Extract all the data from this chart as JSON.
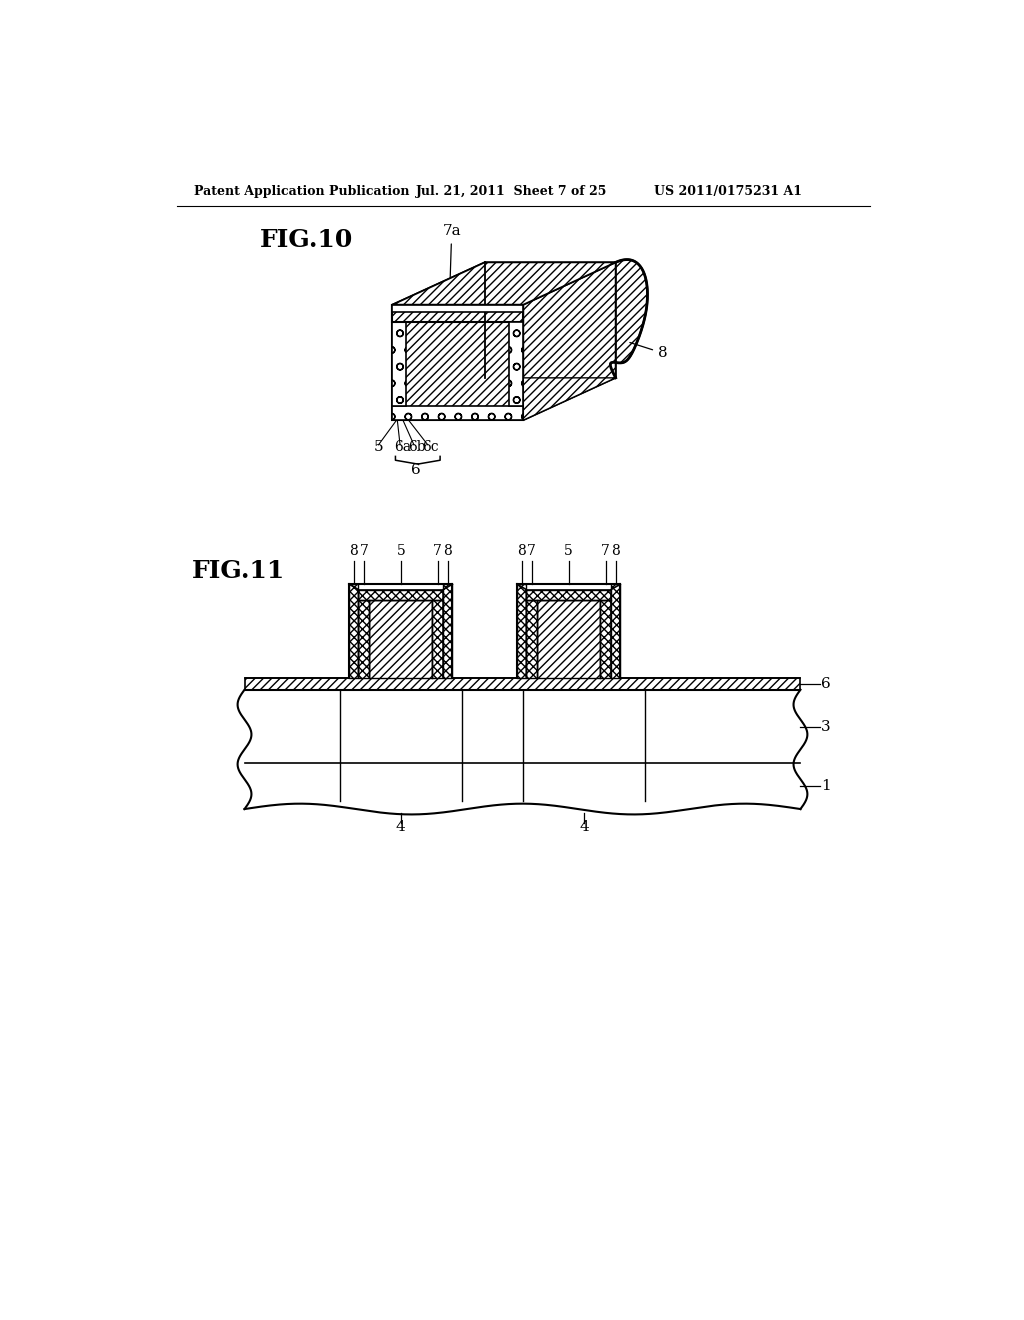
{
  "background_color": "#ffffff",
  "header_left": "Patent Application Publication",
  "header_center": "Jul. 21, 2011  Sheet 7 of 25",
  "header_right": "US 2011/0175231 A1",
  "fig10_title": "FIG.10",
  "fig11_title": "FIG.11",
  "line_color": "#000000"
}
